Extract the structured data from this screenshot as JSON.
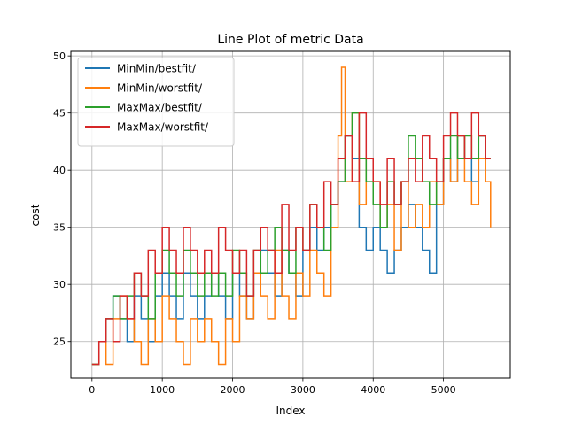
{
  "chart_data": {
    "type": "line",
    "title": "Line Plot of metric Data",
    "xlabel": "Index",
    "ylabel": "cost",
    "xlim": [
      -300,
      5950
    ],
    "ylim": [
      21.8,
      50.4
    ],
    "xticks": [
      0,
      1000,
      2000,
      3000,
      4000,
      5000
    ],
    "yticks": [
      25,
      30,
      35,
      40,
      45,
      50
    ],
    "grid": true,
    "legend_position": "top-left",
    "series": [
      {
        "name": "MinMin/bestfit/",
        "color": "#1f77b4",
        "x": [
          0,
          100,
          200,
          300,
          400,
          500,
          600,
          700,
          800,
          900,
          1000,
          1100,
          1200,
          1300,
          1400,
          1500,
          1600,
          1700,
          1800,
          1900,
          2000,
          2100,
          2200,
          2300,
          2400,
          2500,
          2600,
          2700,
          2800,
          2900,
          3000,
          3100,
          3200,
          3300,
          3400,
          3500,
          3600,
          3700,
          3800,
          3900,
          4000,
          4100,
          4200,
          4300,
          4400,
          4500,
          4600,
          4700,
          4800,
          4900,
          5000,
          5100,
          5200,
          5300,
          5400,
          5500,
          5600,
          5670
        ],
        "y": [
          23,
          25,
          27,
          29,
          27,
          25,
          29,
          27,
          25,
          29,
          31,
          29,
          27,
          31,
          29,
          27,
          29,
          31,
          29,
          27,
          31,
          29,
          27,
          31,
          33,
          31,
          29,
          33,
          31,
          29,
          33,
          35,
          33,
          35,
          37,
          39,
          43,
          41,
          35,
          33,
          35,
          33,
          31,
          33,
          35,
          37,
          35,
          33,
          31,
          37,
          41,
          39,
          43,
          41,
          39,
          43,
          41,
          41
        ]
      },
      {
        "name": "MinMin/worstfit/",
        "color": "#ff7f0e",
        "x": [
          0,
          100,
          200,
          300,
          400,
          500,
          600,
          700,
          800,
          900,
          1000,
          1100,
          1200,
          1300,
          1400,
          1500,
          1600,
          1700,
          1800,
          1900,
          2000,
          2100,
          2200,
          2300,
          2400,
          2500,
          2600,
          2700,
          2800,
          2900,
          3000,
          3100,
          3200,
          3300,
          3400,
          3500,
          3550,
          3600,
          3700,
          3800,
          3900,
          4000,
          4100,
          4200,
          4300,
          4400,
          4500,
          4600,
          4700,
          4800,
          4900,
          5000,
          5100,
          5200,
          5300,
          5400,
          5500,
          5600,
          5670
        ],
        "y": [
          23,
          25,
          23,
          27,
          29,
          27,
          25,
          23,
          27,
          25,
          29,
          27,
          25,
          23,
          27,
          25,
          27,
          25,
          23,
          27,
          25,
          29,
          27,
          31,
          29,
          27,
          33,
          29,
          27,
          31,
          29,
          33,
          31,
          29,
          35,
          43,
          49,
          39,
          45,
          37,
          41,
          39,
          35,
          37,
          33,
          39,
          35,
          37,
          35,
          39,
          37,
          41,
          39,
          43,
          39,
          37,
          41,
          39,
          35
        ]
      },
      {
        "name": "MaxMax/bestfit/",
        "color": "#2ca02c",
        "x": [
          0,
          100,
          200,
          300,
          400,
          500,
          600,
          700,
          800,
          900,
          1000,
          1100,
          1200,
          1300,
          1400,
          1500,
          1600,
          1700,
          1800,
          1900,
          2000,
          2100,
          2200,
          2300,
          2400,
          2500,
          2600,
          2700,
          2800,
          2900,
          3000,
          3100,
          3200,
          3300,
          3400,
          3500,
          3600,
          3700,
          3800,
          3900,
          4000,
          4100,
          4200,
          4300,
          4400,
          4500,
          4600,
          4700,
          4800,
          4900,
          5000,
          5100,
          5200,
          5300,
          5400,
          5500,
          5600,
          5670
        ],
        "y": [
          23,
          25,
          27,
          29,
          27,
          29,
          31,
          29,
          27,
          31,
          33,
          31,
          29,
          33,
          31,
          29,
          31,
          29,
          31,
          29,
          33,
          31,
          29,
          33,
          31,
          33,
          35,
          33,
          31,
          35,
          33,
          37,
          35,
          33,
          37,
          39,
          43,
          45,
          41,
          39,
          37,
          35,
          39,
          37,
          39,
          43,
          41,
          39,
          37,
          39,
          41,
          43,
          41,
          43,
          41,
          43,
          41,
          41
        ]
      },
      {
        "name": "MaxMax/worstfit/",
        "color": "#d62728",
        "x": [
          0,
          100,
          200,
          300,
          400,
          500,
          600,
          700,
          800,
          900,
          1000,
          1100,
          1200,
          1300,
          1400,
          1500,
          1600,
          1700,
          1800,
          1900,
          2000,
          2100,
          2200,
          2300,
          2400,
          2500,
          2600,
          2700,
          2800,
          2900,
          3000,
          3100,
          3200,
          3300,
          3400,
          3500,
          3600,
          3700,
          3800,
          3900,
          4000,
          4100,
          4200,
          4300,
          4400,
          4500,
          4600,
          4700,
          4800,
          4900,
          5000,
          5100,
          5200,
          5300,
          5400,
          5500,
          5600,
          5670
        ],
        "y": [
          23,
          25,
          27,
          25,
          29,
          27,
          31,
          29,
          33,
          31,
          35,
          33,
          31,
          35,
          33,
          31,
          33,
          31,
          35,
          33,
          31,
          33,
          29,
          33,
          35,
          33,
          31,
          37,
          33,
          35,
          33,
          37,
          35,
          39,
          37,
          41,
          43,
          39,
          45,
          41,
          39,
          37,
          41,
          37,
          39,
          41,
          39,
          43,
          41,
          39,
          43,
          45,
          43,
          41,
          45,
          43,
          41,
          41
        ]
      }
    ]
  }
}
